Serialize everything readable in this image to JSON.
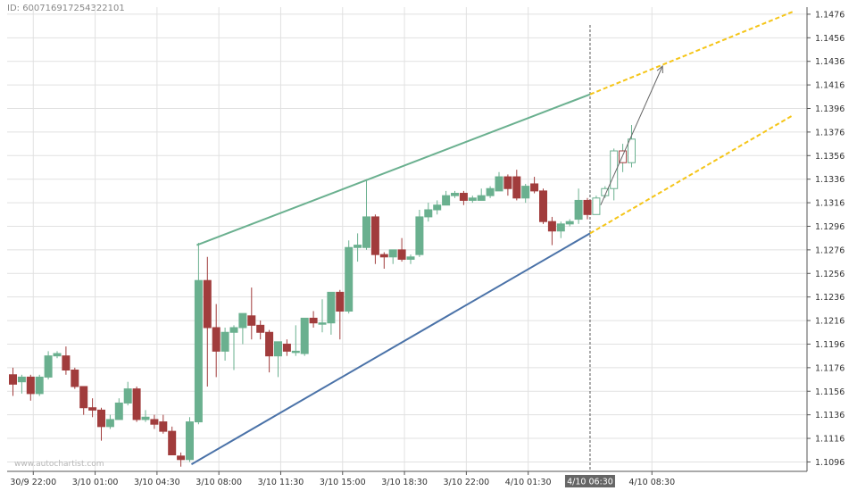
{
  "chart_id": "ID: 600716917254322101",
  "watermark": "www.autochartist.com",
  "chart_data": {
    "type": "candlestick",
    "ylim": [
      1.1088,
      1.1482
    ],
    "grid": true,
    "y_ticks": [
      "1.1476",
      "1.1456",
      "1.1436",
      "1.1416",
      "1.1396",
      "1.1376",
      "1.1356",
      "1.1336",
      "1.1316",
      "1.1296",
      "1.1276",
      "1.1256",
      "1.1236",
      "1.1216",
      "1.1196",
      "1.1176",
      "1.1156",
      "1.1136",
      "1.1116",
      "1.1096"
    ],
    "x_ticks": [
      {
        "index": 2.3,
        "label": "30/9 22:00"
      },
      {
        "index": 9.3,
        "label": "3/10 01:00"
      },
      {
        "index": 16.3,
        "label": "3/10 04:30"
      },
      {
        "index": 23.3,
        "label": "3/10 08:00"
      },
      {
        "index": 30.3,
        "label": "3/10 11:30"
      },
      {
        "index": 37.3,
        "label": "3/10 15:00"
      },
      {
        "index": 44.3,
        "label": "3/10 18:30"
      },
      {
        "index": 51.3,
        "label": "3/10 22:00"
      },
      {
        "index": 58.3,
        "label": "4/10 01:30"
      },
      {
        "index": 72.3,
        "label": "4/10 08:30"
      }
    ],
    "candles": [
      {
        "o": 1.117,
        "h": 1.1176,
        "l": 1.1152,
        "c": 1.1162
      },
      {
        "o": 1.1164,
        "h": 1.117,
        "l": 1.1154,
        "c": 1.1168
      },
      {
        "o": 1.1168,
        "h": 1.117,
        "l": 1.1148,
        "c": 1.1154
      },
      {
        "o": 1.1154,
        "h": 1.117,
        "l": 1.1152,
        "c": 1.1168
      },
      {
        "o": 1.1168,
        "h": 1.119,
        "l": 1.1166,
        "c": 1.1186
      },
      {
        "o": 1.1186,
        "h": 1.119,
        "l": 1.1184,
        "c": 1.1188
      },
      {
        "o": 1.1186,
        "h": 1.1194,
        "l": 1.117,
        "c": 1.1174
      },
      {
        "o": 1.1174,
        "h": 1.1176,
        "l": 1.1158,
        "c": 1.116
      },
      {
        "o": 1.116,
        "h": 1.116,
        "l": 1.1136,
        "c": 1.1142
      },
      {
        "o": 1.1142,
        "h": 1.115,
        "l": 1.1134,
        "c": 1.114
      },
      {
        "o": 1.114,
        "h": 1.1142,
        "l": 1.1114,
        "c": 1.1126
      },
      {
        "o": 1.1126,
        "h": 1.1136,
        "l": 1.1124,
        "c": 1.1132
      },
      {
        "o": 1.1132,
        "h": 1.115,
        "l": 1.1132,
        "c": 1.1146
      },
      {
        "o": 1.1146,
        "h": 1.1164,
        "l": 1.1144,
        "c": 1.1158
      },
      {
        "o": 1.1158,
        "h": 1.116,
        "l": 1.113,
        "c": 1.1132
      },
      {
        "o": 1.1132,
        "h": 1.114,
        "l": 1.113,
        "c": 1.1134
      },
      {
        "o": 1.1132,
        "h": 1.1136,
        "l": 1.1124,
        "c": 1.1128
      },
      {
        "o": 1.113,
        "h": 1.1136,
        "l": 1.112,
        "c": 1.1122
      },
      {
        "o": 1.1122,
        "h": 1.1126,
        "l": 1.1102,
        "c": 1.1102
      },
      {
        "o": 1.1101,
        "h": 1.1104,
        "l": 1.1092,
        "c": 1.1098
      },
      {
        "o": 1.1098,
        "h": 1.1134,
        "l": 1.1096,
        "c": 1.113
      },
      {
        "o": 1.113,
        "h": 1.1282,
        "l": 1.1128,
        "c": 1.125
      },
      {
        "o": 1.125,
        "h": 1.127,
        "l": 1.116,
        "c": 1.121
      },
      {
        "o": 1.121,
        "h": 1.123,
        "l": 1.1168,
        "c": 1.119
      },
      {
        "o": 1.119,
        "h": 1.121,
        "l": 1.1182,
        "c": 1.1206
      },
      {
        "o": 1.1206,
        "h": 1.1212,
        "l": 1.1174,
        "c": 1.121
      },
      {
        "o": 1.121,
        "h": 1.1222,
        "l": 1.1196,
        "c": 1.1222
      },
      {
        "o": 1.122,
        "h": 1.1244,
        "l": 1.12,
        "c": 1.1212
      },
      {
        "o": 1.1212,
        "h": 1.1216,
        "l": 1.12,
        "c": 1.1206
      },
      {
        "o": 1.1206,
        "h": 1.1208,
        "l": 1.1172,
        "c": 1.1186
      },
      {
        "o": 1.1186,
        "h": 1.1196,
        "l": 1.1168,
        "c": 1.1198
      },
      {
        "o": 1.1196,
        "h": 1.12,
        "l": 1.1186,
        "c": 1.119
      },
      {
        "o": 1.119,
        "h": 1.1212,
        "l": 1.1186,
        "c": 1.119
      },
      {
        "o": 1.1188,
        "h": 1.1218,
        "l": 1.1186,
        "c": 1.1218
      },
      {
        "o": 1.1218,
        "h": 1.1224,
        "l": 1.121,
        "c": 1.1214
      },
      {
        "o": 1.1214,
        "h": 1.1234,
        "l": 1.1206,
        "c": 1.1214
      },
      {
        "o": 1.1214,
        "h": 1.124,
        "l": 1.1204,
        "c": 1.124
      },
      {
        "o": 1.124,
        "h": 1.1242,
        "l": 1.12,
        "c": 1.1224
      },
      {
        "o": 1.1224,
        "h": 1.1284,
        "l": 1.1222,
        "c": 1.1278
      },
      {
        "o": 1.1278,
        "h": 1.129,
        "l": 1.1266,
        "c": 1.128
      },
      {
        "o": 1.1278,
        "h": 1.1336,
        "l": 1.1276,
        "c": 1.1304
      },
      {
        "o": 1.1304,
        "h": 1.1306,
        "l": 1.1264,
        "c": 1.1272
      },
      {
        "o": 1.1272,
        "h": 1.1274,
        "l": 1.126,
        "c": 1.127
      },
      {
        "o": 1.127,
        "h": 1.1276,
        "l": 1.1264,
        "c": 1.1276
      },
      {
        "o": 1.1276,
        "h": 1.1286,
        "l": 1.1266,
        "c": 1.1268
      },
      {
        "o": 1.1268,
        "h": 1.1272,
        "l": 1.1264,
        "c": 1.127
      },
      {
        "o": 1.1272,
        "h": 1.131,
        "l": 1.127,
        "c": 1.1304
      },
      {
        "o": 1.1304,
        "h": 1.1316,
        "l": 1.13,
        "c": 1.131
      },
      {
        "o": 1.131,
        "h": 1.1318,
        "l": 1.1306,
        "c": 1.1314
      },
      {
        "o": 1.1314,
        "h": 1.1326,
        "l": 1.1314,
        "c": 1.1322
      },
      {
        "o": 1.1322,
        "h": 1.1326,
        "l": 1.132,
        "c": 1.1324
      },
      {
        "o": 1.1324,
        "h": 1.1326,
        "l": 1.1314,
        "c": 1.1318
      },
      {
        "o": 1.1318,
        "h": 1.1322,
        "l": 1.1316,
        "c": 1.132
      },
      {
        "o": 1.1318,
        "h": 1.1328,
        "l": 1.1318,
        "c": 1.1322
      },
      {
        "o": 1.1322,
        "h": 1.133,
        "l": 1.132,
        "c": 1.1328
      },
      {
        "o": 1.1326,
        "h": 1.1342,
        "l": 1.1326,
        "c": 1.1338
      },
      {
        "o": 1.1338,
        "h": 1.134,
        "l": 1.1322,
        "c": 1.1328
      },
      {
        "o": 1.1338,
        "h": 1.1344,
        "l": 1.1318,
        "c": 1.132
      },
      {
        "o": 1.132,
        "h": 1.1332,
        "l": 1.1316,
        "c": 1.133
      },
      {
        "o": 1.1332,
        "h": 1.1338,
        "l": 1.1324,
        "c": 1.1326
      },
      {
        "o": 1.1326,
        "h": 1.1328,
        "l": 1.1298,
        "c": 1.13
      },
      {
        "o": 1.13,
        "h": 1.1304,
        "l": 1.128,
        "c": 1.1292
      },
      {
        "o": 1.1292,
        "h": 1.13,
        "l": 1.1286,
        "c": 1.1298
      },
      {
        "o": 1.1298,
        "h": 1.1302,
        "l": 1.1296,
        "c": 1.13
      },
      {
        "o": 1.1302,
        "h": 1.1328,
        "l": 1.1298,
        "c": 1.1318
      },
      {
        "o": 1.1318,
        "h": 1.132,
        "l": 1.1302,
        "c": 1.1306
      },
      {
        "o": 1.1306,
        "h": 1.1322,
        "l": 1.1306,
        "c": 1.132,
        "hollow": true
      },
      {
        "o": 1.1322,
        "h": 1.133,
        "l": 1.132,
        "c": 1.1328,
        "hollow": true
      },
      {
        "o": 1.1328,
        "h": 1.1362,
        "l": 1.1318,
        "c": 1.136,
        "hollow": true
      },
      {
        "o": 1.136,
        "h": 1.1366,
        "l": 1.1342,
        "c": 1.135,
        "hollow": true
      },
      {
        "o": 1.135,
        "h": 1.1382,
        "l": 1.1346,
        "c": 1.137,
        "hollow": true
      }
    ],
    "current_marker": {
      "index": 65.3,
      "label": "4/10 06:30"
    },
    "lines": [
      {
        "kind": "resistance",
        "color": "#6ab08f",
        "x1": 20.8,
        "y1": 1.128,
        "x2": 65.3,
        "y2": 1.1408,
        "style": "solid"
      },
      {
        "kind": "support",
        "color": "#4a72a8",
        "x1": 20.2,
        "y1": 1.1094,
        "x2": 65.3,
        "y2": 1.129,
        "style": "solid"
      },
      {
        "kind": "projection",
        "color": "#f5c518",
        "x1": 65.3,
        "y1": 1.1408,
        "x2": 88.2,
        "y2": 1.1478,
        "style": "dashed"
      },
      {
        "kind": "projection",
        "color": "#f5c518",
        "x1": 65.3,
        "y1": 1.129,
        "x2": 88.2,
        "y2": 1.139,
        "style": "dashed"
      }
    ],
    "forecast_arrow": {
      "x1": 66.5,
      "y1": 1.1314,
      "x2": 73.5,
      "y2": 1.1432,
      "color": "#666666"
    },
    "colors": {
      "up": "#6ab08f",
      "down": "#a13c3c",
      "grid": "#e1e1e1",
      "hollow_stroke": "#6ab08f",
      "hollow_fill": "#ffffff",
      "marker_bg": "#666666",
      "marker_text": "#ffffff"
    }
  }
}
